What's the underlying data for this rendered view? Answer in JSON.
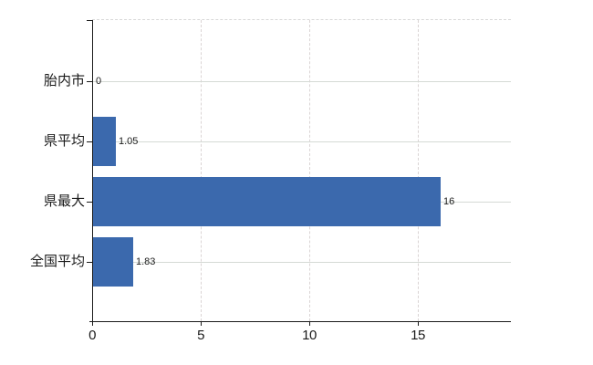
{
  "chart_data": {
    "type": "bar",
    "orientation": "horizontal",
    "title": "",
    "xlabel": "",
    "ylabel": "",
    "categories": [
      "胎内市",
      "県平均",
      "県最大",
      "全国平均"
    ],
    "values": [
      0,
      1.05,
      16,
      1.83
    ],
    "value_labels": [
      "0",
      "1.05",
      "16",
      "1.83"
    ],
    "x_ticks": [
      0,
      5,
      10,
      15
    ],
    "x_tick_labels": [
      "0",
      "5",
      "10",
      "15"
    ],
    "xlim": [
      0,
      19.3
    ],
    "grid": true,
    "legend": false
  },
  "colors": {
    "bar": "#3b69ad",
    "axis": "#1a1a1a",
    "gridline": "#d8d8d8",
    "text": "#1a1a1a",
    "background": "#ffffff"
  }
}
